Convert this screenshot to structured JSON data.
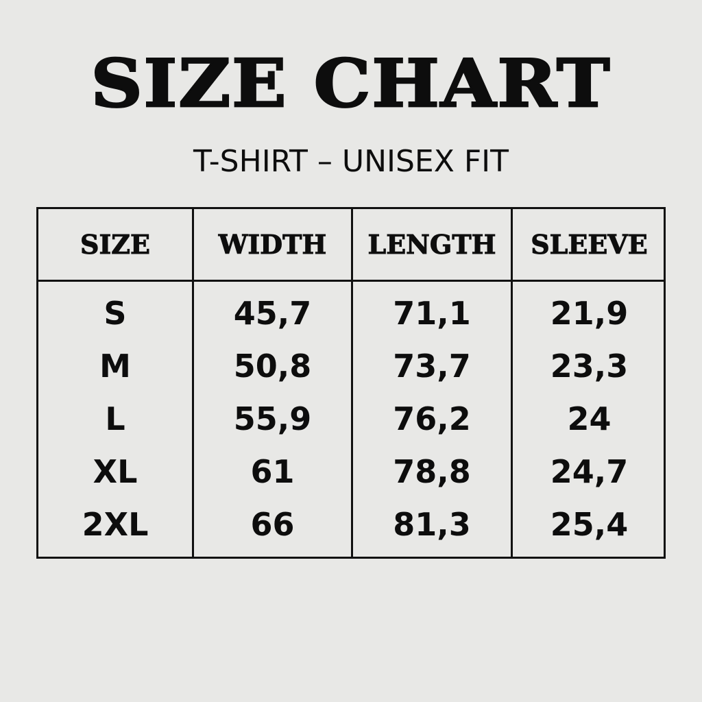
{
  "title": "SIZE CHART",
  "subtitle": "T-SHIRT – UNISEX FIT",
  "table": {
    "headers": [
      "SIZE",
      "WIDTH",
      "LENGTH",
      "SLEEVE"
    ],
    "rows": [
      [
        "S",
        "45,7",
        "71,1",
        "21,9"
      ],
      [
        "M",
        "50,8",
        "73,7",
        "23,3"
      ],
      [
        "L",
        "55,9",
        "76,2",
        "24"
      ],
      [
        "XL",
        "61",
        "78,8",
        "24,7"
      ],
      [
        "2XL",
        "66",
        "81,3",
        "25,4"
      ]
    ]
  }
}
